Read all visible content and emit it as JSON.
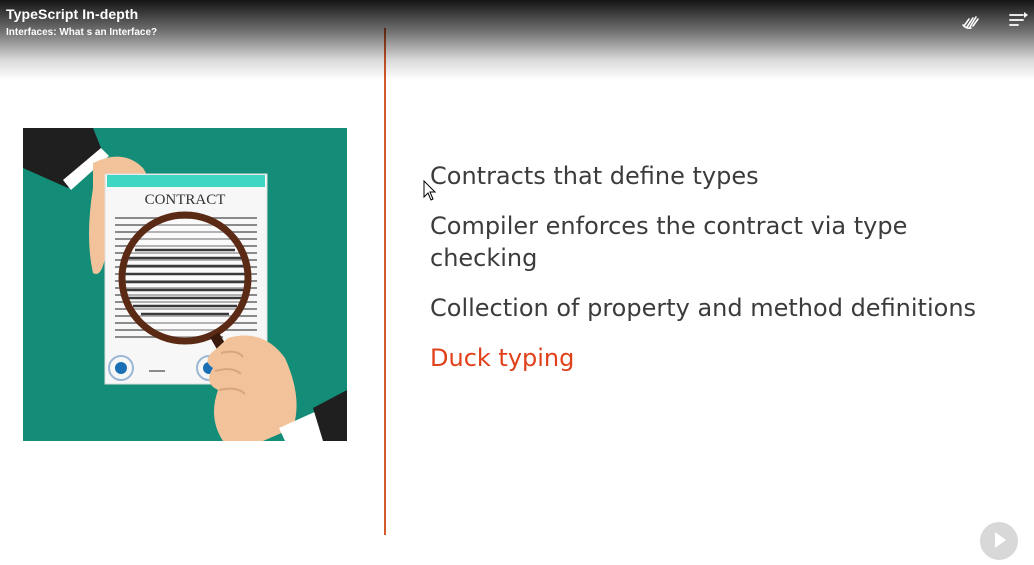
{
  "header": {
    "course_title": "TypeScript In-depth",
    "module_title": "Interfaces: What s an Interface?",
    "controls": [
      "hands-icon",
      "menu-icon"
    ]
  },
  "slide": {
    "illustration": {
      "document_heading": "CONTRACT",
      "background_color": "#138d77"
    },
    "bullets": [
      {
        "text": "Contracts that define types"
      },
      {
        "text": "Compiler enforces the contract via type checking"
      },
      {
        "text": "Collection of property and method definitions"
      },
      {
        "text": "Duck typing",
        "highlight_color": "#e0401a"
      }
    ],
    "divider_color": "#d35a2a",
    "text_color": "#3c3c3c"
  },
  "player": {
    "next_icon": "play-next-icon"
  }
}
